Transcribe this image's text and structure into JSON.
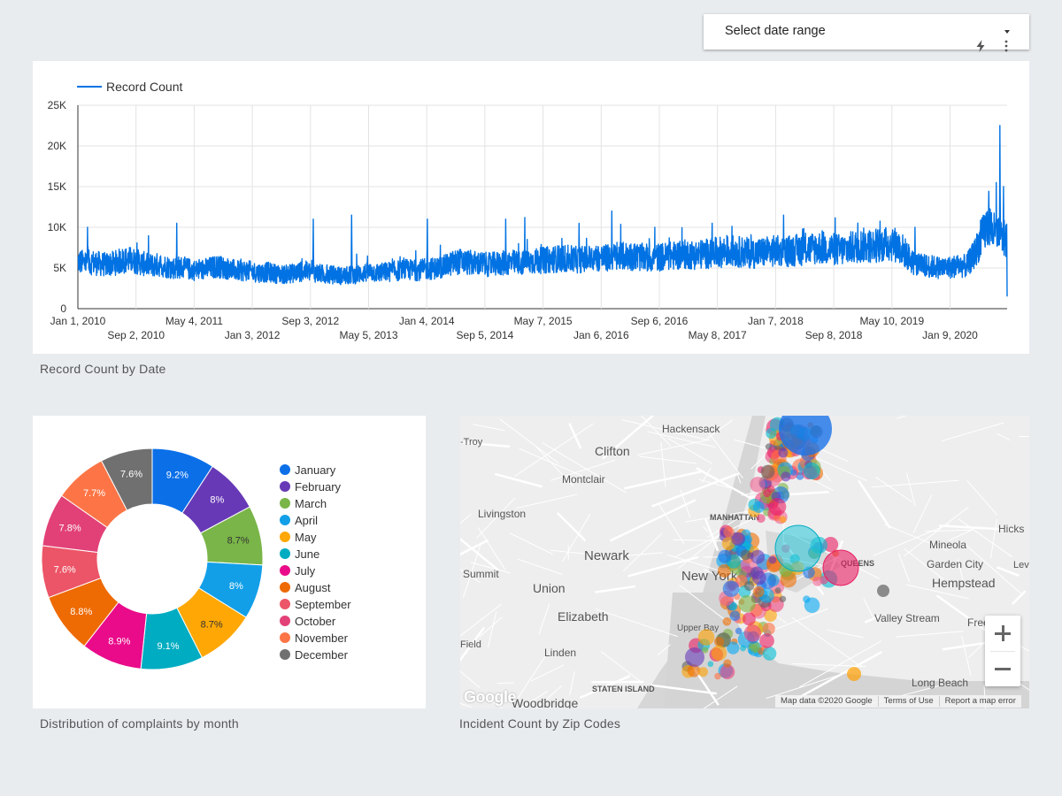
{
  "date_range": {
    "label": "Select date range",
    "icons": [
      "chevron-down-icon",
      "lightning-icon",
      "more-vert-icon"
    ]
  },
  "line_chart": {
    "caption": "Record Count by Date",
    "chart_data": {
      "type": "line",
      "title": "",
      "legend": "Record Count",
      "legend_position": "top-left",
      "color": "#0072e3",
      "yticks": [
        "0",
        "5K",
        "10K",
        "15K",
        "20K",
        "25K"
      ],
      "ylim": [
        0,
        25000
      ],
      "x_range": [
        "2010-01-01",
        "2020-07-20"
      ],
      "xticks_row1": [
        "Jan 1, 2010",
        "May 4, 2011",
        "Sep 3, 2012",
        "Jan 4, 2014",
        "May 7, 2015",
        "Sep 6, 2016",
        "Jan 7, 2018",
        "May 10, 2019"
      ],
      "xticks_row2": [
        "Sep 2, 2010",
        "Jan 3, 2012",
        "May 5, 2013",
        "Sep 5, 2014",
        "Jan 6, 2016",
        "May 8, 2017",
        "Sep 8, 2018",
        "Jan 9, 2020"
      ],
      "series_monthly_baseline": [
        5800,
        5600,
        5700,
        5500,
        5400,
        5600,
        5900,
        6000,
        5800,
        5500,
        5300,
        5400,
        5200,
        5000,
        5100,
        4900,
        4700,
        4800,
        5000,
        5200,
        5000,
        4800,
        4600,
        4700,
        4500,
        4400,
        4500,
        4300,
        4200,
        4300,
        4500,
        4600,
        4500,
        4300,
        4100,
        4200,
        4000,
        4100,
        4200,
        4400,
        4500,
        4400,
        4500,
        4600,
        4700,
        4800,
        4700,
        4800,
        4900,
        5000,
        5200,
        5600,
        5800,
        5700,
        5600,
        5500,
        5400,
        5500,
        5600,
        5700,
        5600,
        5700,
        5800,
        5900,
        6000,
        6100,
        6200,
        6100,
        6000,
        6100,
        6200,
        6300,
        6200,
        6300,
        6400,
        6500,
        6400,
        6300,
        6200,
        6300,
        6400,
        6500,
        6600,
        6700,
        6600,
        6700,
        6800,
        6900,
        7000,
        7100,
        7000,
        6900,
        6800,
        6900,
        7000,
        7100,
        7000,
        7100,
        7200,
        7300,
        7400,
        7500,
        7400,
        7300,
        7200,
        7400,
        7600,
        7800,
        7700,
        7800,
        7900,
        8000,
        7600,
        6500,
        5400,
        5300,
        5200,
        5100,
        5000,
        5100,
        5300,
        5200,
        6500,
        8500,
        10500,
        9000,
        8500
      ],
      "notable_peaks": [
        {
          "date": "2010-02-10",
          "value": 10000
        },
        {
          "date": "2011-02-15",
          "value": 10500
        },
        {
          "date": "2012-09-03",
          "value": 11000
        },
        {
          "date": "2013-02-09",
          "value": 11500
        },
        {
          "date": "2013-12-20",
          "value": 11000
        },
        {
          "date": "2014-11-10",
          "value": 11000
        },
        {
          "date": "2015-01-28",
          "value": 11200
        },
        {
          "date": "2015-09-10",
          "value": 10500
        },
        {
          "date": "2016-01-24",
          "value": 12000
        },
        {
          "date": "2016-07-20",
          "value": 10000
        },
        {
          "date": "2017-03-15",
          "value": 10500
        },
        {
          "date": "2018-01-05",
          "value": 11500
        },
        {
          "date": "2019-07-04",
          "value": 10000
        },
        {
          "date": "2020-06-05",
          "value": 15500
        },
        {
          "date": "2020-06-20",
          "value": 22500
        },
        {
          "date": "2020-07-05",
          "value": 15000
        }
      ],
      "final_value": 1500
    }
  },
  "donut_chart": {
    "caption": "Distribution of complaints by month",
    "chart_data": {
      "type": "pie",
      "donut": true,
      "legend_position": "right",
      "categories": [
        "January",
        "February",
        "March",
        "April",
        "May",
        "June",
        "July",
        "August",
        "September",
        "October",
        "November",
        "December"
      ],
      "values": [
        9.2,
        8.0,
        8.7,
        8.0,
        8.7,
        9.1,
        8.9,
        8.8,
        7.6,
        7.8,
        7.7,
        7.6
      ],
      "labels": [
        "9.2%",
        "8%",
        "8.7%",
        "8%",
        "8.7%",
        "9.1%",
        "8.9%",
        "8.8%",
        "7.6%",
        "7.8%",
        "7.7%",
        "7.6%"
      ],
      "colors": [
        "#0b6fe8",
        "#6739b6",
        "#79b548",
        "#129fe8",
        "#ffa704",
        "#00acc1",
        "#e90b8a",
        "#ee6a03",
        "#ec5567",
        "#e24177",
        "#fd7546",
        "#707070"
      ]
    }
  },
  "map": {
    "caption": "Incident Count by Zip Codes",
    "place_labels": [
      "Hackensack",
      "Clifton",
      "Montclair",
      "Livingston",
      "Newark",
      "Summit",
      "Union",
      "Elizabeth",
      "Linden",
      "STATEN ISLAND",
      "Woodbridge",
      "MANHATTAN",
      "New York",
      "QUEENS",
      "Mineola",
      "Garden City",
      "Hempstead",
      "Valley Stream",
      "Long Beach",
      "Hicks",
      "Levit",
      "Free",
      "-Troy",
      "Field",
      "Upper Bay"
    ],
    "footer": [
      "Map data ©2020 Google",
      "Terms of Use",
      "Report a map error"
    ],
    "logo": "Google",
    "zoom_in_icon": "plus-icon",
    "zoom_out_icon": "minus-icon",
    "bubble_colors": [
      "#1a73e8",
      "#673ab7",
      "#7cb342",
      "#03a9f4",
      "#ffa000",
      "#00bcd4",
      "#e91e63",
      "#ef6c00",
      "#f06292",
      "#ec407a",
      "#ff7043",
      "#616161"
    ]
  }
}
